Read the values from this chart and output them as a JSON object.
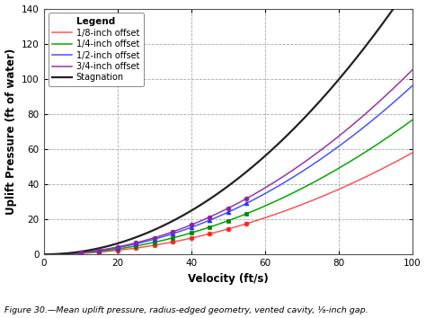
{
  "title": "",
  "xlabel": "Velocity (ft/s)",
  "ylabel": "Uplift Pressure (ft of water)",
  "xlim": [
    0,
    100
  ],
  "ylim": [
    0,
    140
  ],
  "xticks": [
    0,
    20,
    40,
    60,
    80,
    100
  ],
  "yticks": [
    0,
    20,
    40,
    60,
    80,
    100,
    120,
    140
  ],
  "caption": "Figure 30.—Mean uplift pressure, radius-edged geometry, vented cavity, ⅛-inch gap.",
  "series": [
    {
      "label": "1/8-inch offset",
      "color": "#ff5555",
      "marker": "o",
      "marker_facecolor": "#ff2222",
      "coeff": 0.00578
    },
    {
      "label": "1/4-inch offset",
      "color": "#00aa00",
      "marker": "s",
      "marker_facecolor": "#008800",
      "coeff": 0.00765
    },
    {
      "label": "1/2-inch offset",
      "color": "#4455ff",
      "marker": "^",
      "marker_facecolor": "#2233ff",
      "coeff": 0.0096
    },
    {
      "label": "3/4-inch offset",
      "color": "#9933aa",
      "marker": "o",
      "marker_facecolor": "#8822aa",
      "coeff": 0.0105
    },
    {
      "label": "Stagnation",
      "color": "#222222",
      "marker": null,
      "marker_facecolor": null,
      "coeff": 0.01554
    }
  ],
  "marker_velocities": [
    10,
    15,
    20,
    25,
    30,
    35,
    40,
    45,
    50,
    55
  ],
  "background_color": "#ffffff",
  "grid_color": "#aaaaaa",
  "legend_title": "Legend"
}
